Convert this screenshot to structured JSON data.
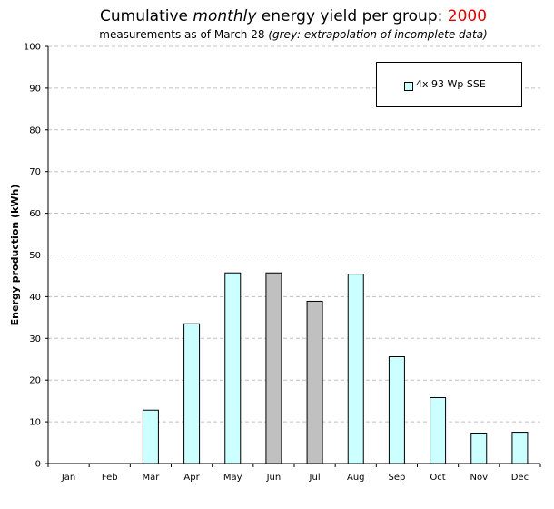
{
  "title": {
    "prefix": "Cumulative",
    "emphasis": "monthly",
    "suffix": "energy yield per group:",
    "year": "2000"
  },
  "subtitle": {
    "text": "measurements as of March 28",
    "note": "(grey: extrapolation of incomplete data)"
  },
  "legend": {
    "label": "4x 93 Wp SSE"
  },
  "colors": {
    "measured": "#ccffff",
    "extrapolated": "#c0c0c0",
    "grid": "#c0c0c0"
  },
  "chart_data": {
    "type": "bar",
    "ylabel": "Energy production (kWh)",
    "xlabel": "",
    "ylim": [
      0,
      100
    ],
    "yticks": [
      0,
      10,
      20,
      30,
      40,
      50,
      60,
      70,
      80,
      90,
      100
    ],
    "grid": true,
    "legend_position": "top-right",
    "categories": [
      "Jan",
      "Feb",
      "Mar",
      "Apr",
      "May",
      "Jun",
      "Jul",
      "Aug",
      "Sep",
      "Oct",
      "Nov",
      "Dec"
    ],
    "series": [
      {
        "name": "4x 93 Wp SSE",
        "values": [
          0,
          0,
          12.8,
          33.5,
          45.7,
          45.7,
          38.9,
          45.4,
          25.6,
          15.8,
          7.3,
          7.5
        ],
        "extrapolated": [
          false,
          false,
          false,
          false,
          false,
          true,
          true,
          false,
          false,
          false,
          false,
          false
        ]
      }
    ]
  }
}
